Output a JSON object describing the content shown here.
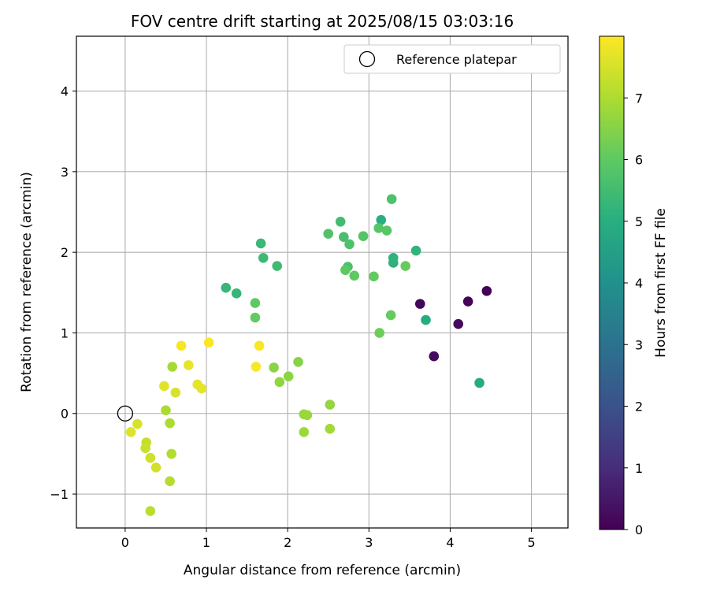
{
  "chart_data": {
    "type": "scatter",
    "title": "FOV centre drift starting at 2025/08/15 03:03:16",
    "xlabel": "Angular distance from reference (arcmin)",
    "ylabel": "Rotation from reference (arcmin)",
    "xlim": [
      -0.6,
      5.45
    ],
    "ylim": [
      -1.42,
      4.68
    ],
    "xticks": [
      0,
      1,
      2,
      3,
      4,
      5
    ],
    "yticks": [
      -1,
      0,
      1,
      2,
      3,
      4
    ],
    "xtick_labels": [
      "0",
      "1",
      "2",
      "3",
      "4",
      "5"
    ],
    "ytick_labels": [
      "−1",
      "0",
      "1",
      "2",
      "3",
      "4"
    ],
    "grid": true,
    "legend": {
      "position": "upper right",
      "entries": [
        {
          "label": "Reference platepar",
          "marker": "open-circle"
        }
      ]
    },
    "reference_point": {
      "x": 0.0,
      "y": 0.0
    },
    "colorbar": {
      "label": "Hours from first FF file",
      "colormap": "viridis",
      "range": [
        0,
        8.0
      ],
      "ticks": [
        0,
        1,
        2,
        3,
        4,
        5,
        6,
        7
      ],
      "tick_labels": [
        "0",
        "1",
        "2",
        "3",
        "4",
        "5",
        "6",
        "7"
      ]
    },
    "points": [
      {
        "x": 4.45,
        "y": 1.52,
        "c": 0.05
      },
      {
        "x": 4.22,
        "y": 1.39,
        "c": 0.1
      },
      {
        "x": 3.63,
        "y": 1.36,
        "c": 0.15
      },
      {
        "x": 4.1,
        "y": 1.11,
        "c": 0.2
      },
      {
        "x": 3.8,
        "y": 0.71,
        "c": 0.25
      },
      {
        "x": 4.36,
        "y": 0.38,
        "c": 4.9
      },
      {
        "x": 3.7,
        "y": 1.16,
        "c": 4.95
      },
      {
        "x": 3.15,
        "y": 2.4,
        "c": 5.0
      },
      {
        "x": 3.3,
        "y": 1.87,
        "c": 5.1
      },
      {
        "x": 3.3,
        "y": 1.93,
        "c": 5.15
      },
      {
        "x": 3.58,
        "y": 2.02,
        "c": 5.2
      },
      {
        "x": 1.24,
        "y": 1.56,
        "c": 5.3
      },
      {
        "x": 1.37,
        "y": 1.49,
        "c": 5.25
      },
      {
        "x": 1.67,
        "y": 2.11,
        "c": 5.35
      },
      {
        "x": 1.7,
        "y": 1.93,
        "c": 5.4
      },
      {
        "x": 1.87,
        "y": 1.83,
        "c": 5.45
      },
      {
        "x": 2.65,
        "y": 2.38,
        "c": 5.5
      },
      {
        "x": 2.69,
        "y": 2.19,
        "c": 5.6
      },
      {
        "x": 2.74,
        "y": 1.82,
        "c": 5.65
      },
      {
        "x": 2.76,
        "y": 2.1,
        "c": 5.7
      },
      {
        "x": 2.5,
        "y": 2.23,
        "c": 5.75
      },
      {
        "x": 2.93,
        "y": 2.2,
        "c": 5.8
      },
      {
        "x": 3.12,
        "y": 2.3,
        "c": 5.85
      },
      {
        "x": 3.22,
        "y": 2.27,
        "c": 5.9
      },
      {
        "x": 3.28,
        "y": 2.66,
        "c": 5.7
      },
      {
        "x": 2.71,
        "y": 1.78,
        "c": 5.95
      },
      {
        "x": 2.82,
        "y": 1.71,
        "c": 6.0
      },
      {
        "x": 3.06,
        "y": 1.7,
        "c": 6.05
      },
      {
        "x": 3.45,
        "y": 1.83,
        "c": 6.1
      },
      {
        "x": 1.6,
        "y": 1.37,
        "c": 6.0
      },
      {
        "x": 1.6,
        "y": 1.19,
        "c": 6.05
      },
      {
        "x": 3.27,
        "y": 1.22,
        "c": 6.1
      },
      {
        "x": 3.13,
        "y": 1.0,
        "c": 6.2
      },
      {
        "x": 2.13,
        "y": 0.64,
        "c": 6.5
      },
      {
        "x": 1.83,
        "y": 0.57,
        "c": 6.55
      },
      {
        "x": 2.01,
        "y": 0.46,
        "c": 6.6
      },
      {
        "x": 1.9,
        "y": 0.39,
        "c": 6.65
      },
      {
        "x": 2.52,
        "y": 0.11,
        "c": 6.7
      },
      {
        "x": 2.2,
        "y": -0.01,
        "c": 6.75
      },
      {
        "x": 2.24,
        "y": -0.02,
        "c": 6.75
      },
      {
        "x": 2.2,
        "y": -0.23,
        "c": 6.8
      },
      {
        "x": 2.52,
        "y": -0.19,
        "c": 6.85
      },
      {
        "x": 0.58,
        "y": 0.58,
        "c": 6.9
      },
      {
        "x": 0.5,
        "y": 0.04,
        "c": 6.95
      },
      {
        "x": 0.55,
        "y": -0.12,
        "c": 7.0
      },
      {
        "x": 0.57,
        "y": -0.5,
        "c": 7.05
      },
      {
        "x": 0.55,
        "y": -0.84,
        "c": 7.1
      },
      {
        "x": 0.31,
        "y": -1.21,
        "c": 7.15
      },
      {
        "x": 0.26,
        "y": -0.36,
        "c": 7.3
      },
      {
        "x": 0.25,
        "y": -0.43,
        "c": 7.35
      },
      {
        "x": 0.31,
        "y": -0.55,
        "c": 7.4
      },
      {
        "x": 0.38,
        "y": -0.67,
        "c": 7.45
      },
      {
        "x": 0.15,
        "y": -0.13,
        "c": 7.55
      },
      {
        "x": 0.07,
        "y": -0.23,
        "c": 7.6
      },
      {
        "x": 0.62,
        "y": 0.26,
        "c": 7.55
      },
      {
        "x": 0.48,
        "y": 0.34,
        "c": 7.65
      },
      {
        "x": 0.89,
        "y": 0.36,
        "c": 7.7
      },
      {
        "x": 0.94,
        "y": 0.31,
        "c": 7.7
      },
      {
        "x": 0.78,
        "y": 0.6,
        "c": 7.75
      },
      {
        "x": 0.69,
        "y": 0.84,
        "c": 7.9
      },
      {
        "x": 1.03,
        "y": 0.88,
        "c": 7.95
      },
      {
        "x": 1.65,
        "y": 0.84,
        "c": 7.95
      },
      {
        "x": 1.61,
        "y": 0.58,
        "c": 7.95
      }
    ]
  }
}
